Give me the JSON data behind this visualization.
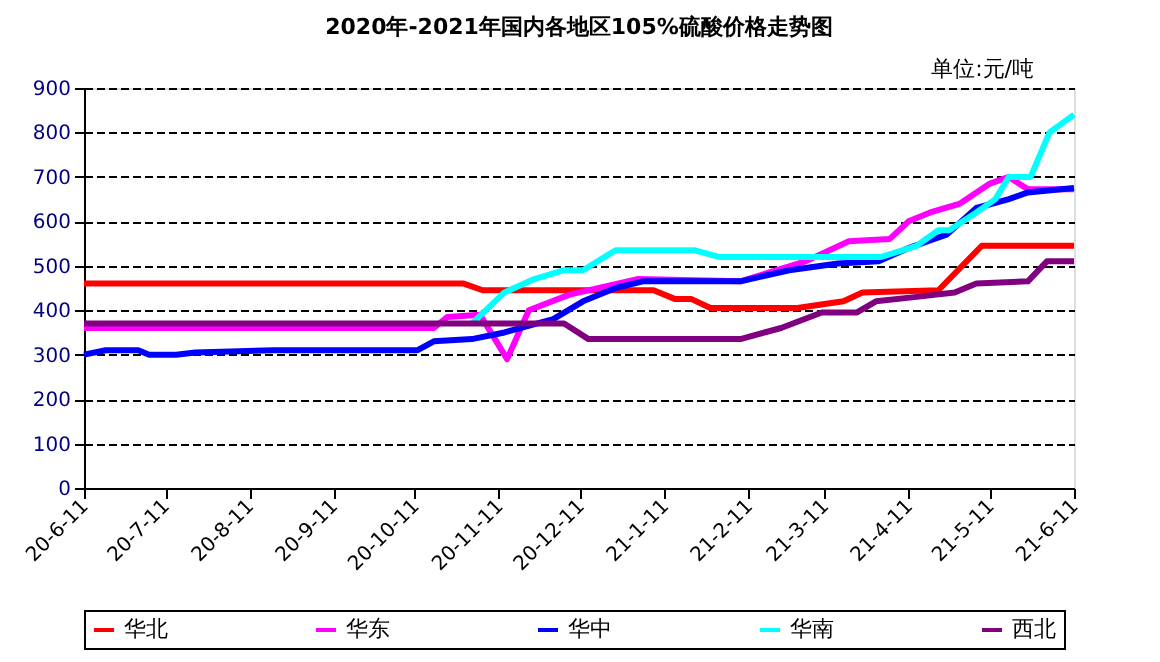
{
  "chart_data": {
    "type": "line",
    "title": "2020年-2021年国内各地区105%硫酸价格走势图",
    "annotations": [
      "单位:元/吨"
    ],
    "xlim": [
      "2020-06-11",
      "2021-06-11"
    ],
    "xticks": [
      {
        "value": "2020-06-11",
        "label": "20-6-11"
      },
      {
        "value": "2020-07-11",
        "label": "20-7-11"
      },
      {
        "value": "2020-08-11",
        "label": "20-8-11"
      },
      {
        "value": "2020-09-11",
        "label": "20-9-11"
      },
      {
        "value": "2020-10-11",
        "label": "20-10-11"
      },
      {
        "value": "2020-11-11",
        "label": "20-11-11"
      },
      {
        "value": "2020-12-11",
        "label": "20-12-11"
      },
      {
        "value": "2021-01-11",
        "label": "21-1-11"
      },
      {
        "value": "2021-02-11",
        "label": "21-2-11"
      },
      {
        "value": "2021-03-11",
        "label": "21-3-11"
      },
      {
        "value": "2021-04-11",
        "label": "21-4-11"
      },
      {
        "value": "2021-05-11",
        "label": "21-5-11"
      },
      {
        "value": "2021-06-11",
        "label": "21-6-11"
      }
    ],
    "ylim": [
      0,
      900
    ],
    "yticks": [
      0,
      100,
      200,
      300,
      400,
      500,
      600,
      700,
      800,
      900
    ],
    "grid": "y",
    "legend": "bottom",
    "marker": "none",
    "line_style": "solid",
    "series": [
      {
        "name": "华北",
        "color": "#ff0000",
        "x": [
          "2020-06-11",
          "2020-10-29",
          "2020-11-05",
          "2021-01-07",
          "2021-01-15",
          "2021-01-21",
          "2021-01-28",
          "2021-03-01",
          "2021-03-18",
          "2021-03-25",
          "2021-04-22",
          "2021-05-08",
          "2021-06-11"
        ],
        "values": [
          460,
          460,
          445,
          445,
          425,
          425,
          405,
          405,
          420,
          440,
          445,
          545,
          545
        ]
      },
      {
        "name": "华东",
        "color": "#ff00ff",
        "x": [
          "2020-06-11",
          "2020-10-18",
          "2020-10-23",
          "2020-11-04",
          "2020-11-14",
          "2020-11-22",
          "2020-12-07",
          "2021-01-01",
          "2021-02-08",
          "2021-03-04",
          "2021-03-20",
          "2021-04-04",
          "2021-04-11",
          "2021-04-19",
          "2021-04-30",
          "2021-05-11",
          "2021-05-18",
          "2021-05-25",
          "2021-06-11"
        ],
        "values": [
          360,
          360,
          385,
          390,
          290,
          400,
          435,
          470,
          465,
          510,
          555,
          560,
          600,
          620,
          640,
          685,
          700,
          672,
          672
        ]
      },
      {
        "name": "华中",
        "color": "#0000ff",
        "x": [
          "2020-06-11",
          "2020-06-19",
          "2020-07-01",
          "2020-07-05",
          "2020-07-15",
          "2020-07-22",
          "2020-08-20",
          "2020-10-12",
          "2020-10-18",
          "2020-11-01",
          "2020-11-13",
          "2020-12-01",
          "2020-12-12",
          "2020-12-24",
          "2021-01-03",
          "2021-02-08",
          "2021-02-26",
          "2021-03-16",
          "2021-03-31",
          "2021-04-11",
          "2021-04-25",
          "2021-05-06",
          "2021-05-18",
          "2021-05-25",
          "2021-06-11"
        ],
        "values": [
          300,
          310,
          310,
          300,
          300,
          305,
          310,
          310,
          330,
          335,
          350,
          380,
          420,
          450,
          465,
          465,
          490,
          505,
          510,
          540,
          570,
          630,
          650,
          665,
          675
        ]
      },
      {
        "name": "华南",
        "color": "#00ffff",
        "x": [
          "2020-11-01",
          "2020-11-13",
          "2020-11-24",
          "2020-12-05",
          "2020-12-12",
          "2020-12-24",
          "2021-01-22",
          "2021-01-31",
          "2021-04-01",
          "2021-04-14",
          "2021-04-22",
          "2021-04-26",
          "2021-05-06",
          "2021-05-13",
          "2021-05-18",
          "2021-05-26",
          "2021-06-02",
          "2021-06-11"
        ],
        "values": [
          370,
          440,
          470,
          490,
          490,
          535,
          535,
          520,
          520,
          545,
          580,
          580,
          620,
          650,
          700,
          700,
          800,
          840
        ]
      },
      {
        "name": "西北",
        "color": "#800080",
        "x": [
          "2020-06-11",
          "2020-12-05",
          "2020-12-14",
          "2021-02-08",
          "2021-02-23",
          "2021-03-10",
          "2021-03-23",
          "2021-03-30",
          "2021-04-14",
          "2021-04-28",
          "2021-05-06",
          "2021-05-25",
          "2021-06-01",
          "2021-06-11"
        ],
        "values": [
          370,
          370,
          335,
          335,
          360,
          395,
          395,
          420,
          430,
          440,
          460,
          465,
          510,
          510
        ]
      }
    ]
  }
}
